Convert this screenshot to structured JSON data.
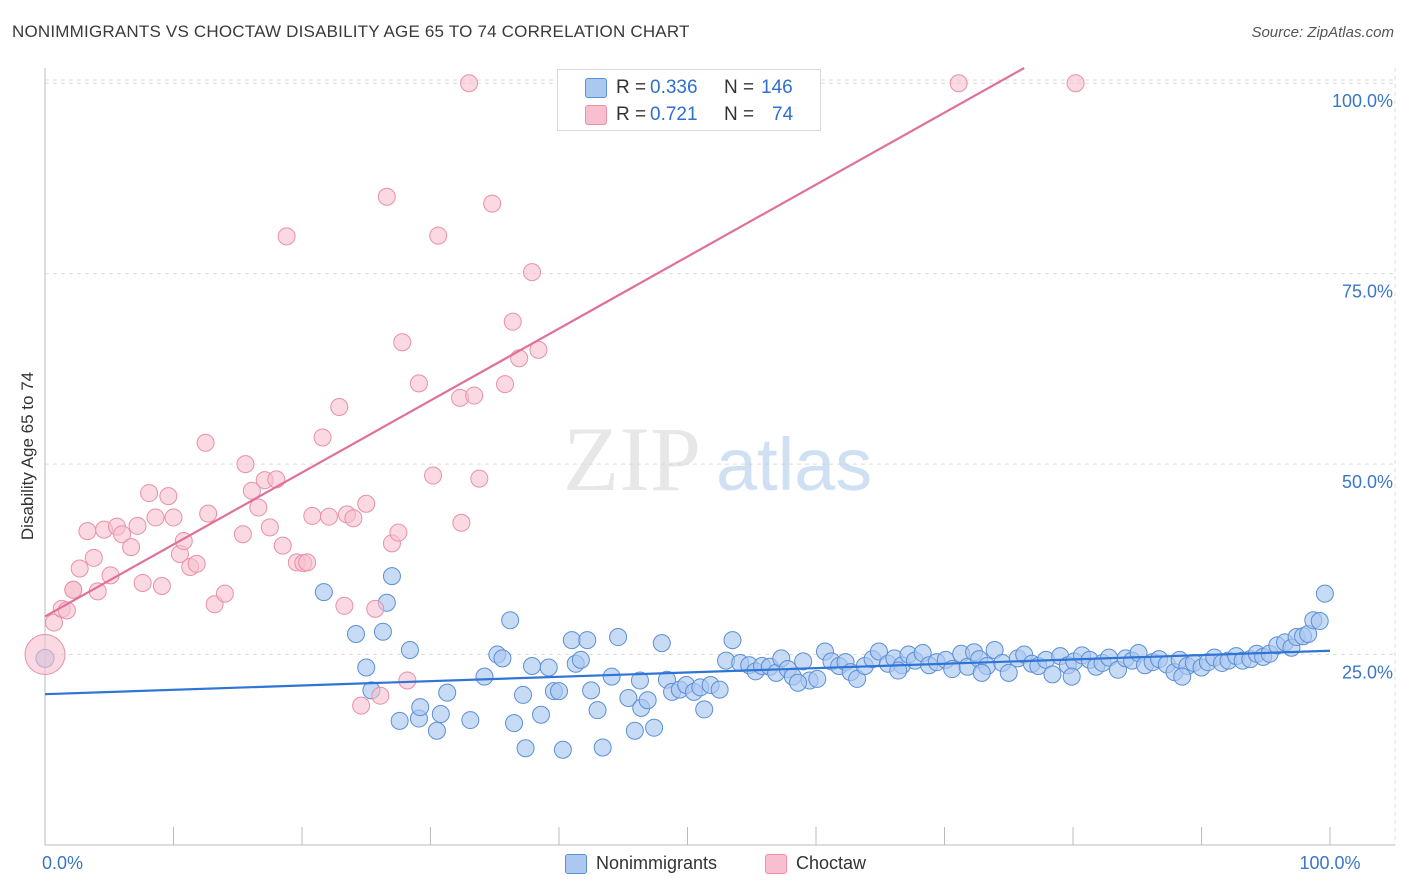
{
  "header": {
    "title": "NONIMMIGRANTS VS CHOCTAW DISABILITY AGE 65 TO 74 CORRELATION CHART",
    "source": "Source: ZipAtlas.com"
  },
  "watermark": {
    "zip": "ZIP",
    "atlas": "atlas"
  },
  "legend_top": [
    {
      "r_label": "R =",
      "r_value": "0.336",
      "n_label": "N =",
      "n_value": "146"
    },
    {
      "r_label": "R =",
      "r_value": "0.721",
      "n_label": "N =",
      "n_value": "74"
    }
  ],
  "legend_bottom": [
    {
      "label": "Nonimmigrants"
    },
    {
      "label": "Choctaw"
    }
  ],
  "colors": {
    "blue_fill": "#aac8f0",
    "blue_stroke": "#5b8fd6",
    "blue_line": "#2e75d6",
    "pink_fill": "#f7bfcf",
    "pink_stroke": "#e890a8",
    "pink_line": "#e0709a",
    "tick_label": "#3a76c8",
    "grid": "#dddddd"
  },
  "chart_data": {
    "type": "scatter",
    "title": "NONIMMIGRANTS VS CHOCTAW DISABILITY AGE 65 TO 74 CORRELATION CHART",
    "xlabel": "",
    "ylabel": "Disability Age 65 to 74",
    "xlim": [
      0,
      100
    ],
    "ylim": [
      0,
      102
    ],
    "x_tick_labels": [
      {
        "value": 0,
        "label": "0.0%"
      },
      {
        "value": 100,
        "label": "100.0%"
      }
    ],
    "y_tick_labels": [
      {
        "value": 25,
        "label": "25.0%"
      },
      {
        "value": 50,
        "label": "50.0%"
      },
      {
        "value": 75,
        "label": "75.0%"
      },
      {
        "value": 100,
        "label": "100.0%"
      }
    ],
    "grid": true,
    "legend_position": "top-center",
    "series": [
      {
        "name": "Nonimmigrants",
        "r": 0.336,
        "n": 146,
        "trend": [
          [
            0,
            19.8
          ],
          [
            100,
            25.5
          ]
        ],
        "points": [
          [
            0,
            24.5
          ],
          [
            21.7,
            33.2
          ],
          [
            24.2,
            27.7
          ],
          [
            25.0,
            23.3
          ],
          [
            25.4,
            20.3
          ],
          [
            26.3,
            28.0
          ],
          [
            26.6,
            31.8
          ],
          [
            27.0,
            35.3
          ],
          [
            28.4,
            25.6
          ],
          [
            27.6,
            16.3
          ],
          [
            29.1,
            16.6
          ],
          [
            29.2,
            18.1
          ],
          [
            30.5,
            15.0
          ],
          [
            31.3,
            20.0
          ],
          [
            33.1,
            16.4
          ],
          [
            34.2,
            22.1
          ],
          [
            35.2,
            25.0
          ],
          [
            35.6,
            24.5
          ],
          [
            36.2,
            29.5
          ],
          [
            36.5,
            16.0
          ],
          [
            37.2,
            19.7
          ],
          [
            37.4,
            12.7
          ],
          [
            37.9,
            23.5
          ],
          [
            38.6,
            17.1
          ],
          [
            39.2,
            23.3
          ],
          [
            39.6,
            20.2
          ],
          [
            40.0,
            20.2
          ],
          [
            40.3,
            12.5
          ],
          [
            41.0,
            26.9
          ],
          [
            41.3,
            23.8
          ],
          [
            41.7,
            24.3
          ],
          [
            42.2,
            26.9
          ],
          [
            43.0,
            17.7
          ],
          [
            43.4,
            12.8
          ],
          [
            44.1,
            22.1
          ],
          [
            44.6,
            27.3
          ],
          [
            45.4,
            19.3
          ],
          [
            45.9,
            15.0
          ],
          [
            46.3,
            21.6
          ],
          [
            46.4,
            18.0
          ],
          [
            46.9,
            19.0
          ],
          [
            47.4,
            15.4
          ],
          [
            48.0,
            26.5
          ],
          [
            48.4,
            21.7
          ],
          [
            48.8,
            20.1
          ],
          [
            49.4,
            20.4
          ],
          [
            49.9,
            21.0
          ],
          [
            50.5,
            20.1
          ],
          [
            51.0,
            20.7
          ],
          [
            51.3,
            17.8
          ],
          [
            51.8,
            21.0
          ],
          [
            52.5,
            20.4
          ],
          [
            53.0,
            24.2
          ],
          [
            53.5,
            26.9
          ],
          [
            54.1,
            23.9
          ],
          [
            54.8,
            23.6
          ],
          [
            55.3,
            22.8
          ],
          [
            55.8,
            23.5
          ],
          [
            56.4,
            23.4
          ],
          [
            56.9,
            22.6
          ],
          [
            57.3,
            24.5
          ],
          [
            57.8,
            23.1
          ],
          [
            58.2,
            22.1
          ],
          [
            59.0,
            24.1
          ],
          [
            59.5,
            21.6
          ],
          [
            60.1,
            21.8
          ],
          [
            60.7,
            25.4
          ],
          [
            61.2,
            24.1
          ],
          [
            61.8,
            23.5
          ],
          [
            62.3,
            24.0
          ],
          [
            62.7,
            22.7
          ],
          [
            63.2,
            21.8
          ],
          [
            63.8,
            23.5
          ],
          [
            64.4,
            24.4
          ],
          [
            64.9,
            25.4
          ],
          [
            65.6,
            23.8
          ],
          [
            66.1,
            24.5
          ],
          [
            66.7,
            23.6
          ],
          [
            67.2,
            25.0
          ],
          [
            67.7,
            24.2
          ],
          [
            68.3,
            25.2
          ],
          [
            68.8,
            23.6
          ],
          [
            69.4,
            24.0
          ],
          [
            70.1,
            24.3
          ],
          [
            70.6,
            23.1
          ],
          [
            71.3,
            25.1
          ],
          [
            71.8,
            23.4
          ],
          [
            72.3,
            25.3
          ],
          [
            72.7,
            24.4
          ],
          [
            73.3,
            23.5
          ],
          [
            73.9,
            25.6
          ],
          [
            74.5,
            23.9
          ],
          [
            75.0,
            22.6
          ],
          [
            75.7,
            24.5
          ],
          [
            76.2,
            25.0
          ],
          [
            76.8,
            23.8
          ],
          [
            77.3,
            23.5
          ],
          [
            77.9,
            24.3
          ],
          [
            78.4,
            22.4
          ],
          [
            79.0,
            24.8
          ],
          [
            79.6,
            23.6
          ],
          [
            80.1,
            24.1
          ],
          [
            80.7,
            24.9
          ],
          [
            81.3,
            24.3
          ],
          [
            81.8,
            23.4
          ],
          [
            82.3,
            23.9
          ],
          [
            82.8,
            24.6
          ],
          [
            83.5,
            23.0
          ],
          [
            84.1,
            24.5
          ],
          [
            84.6,
            24.2
          ],
          [
            85.1,
            25.2
          ],
          [
            85.6,
            23.6
          ],
          [
            86.2,
            24.0
          ],
          [
            86.7,
            24.4
          ],
          [
            87.3,
            23.7
          ],
          [
            87.9,
            22.7
          ],
          [
            88.3,
            24.3
          ],
          [
            88.9,
            23.5
          ],
          [
            89.4,
            23.9
          ],
          [
            90.0,
            23.3
          ],
          [
            90.5,
            24.0
          ],
          [
            91.0,
            24.6
          ],
          [
            91.6,
            23.9
          ],
          [
            92.1,
            24.2
          ],
          [
            92.7,
            24.8
          ],
          [
            93.2,
            24.2
          ],
          [
            93.8,
            24.4
          ],
          [
            94.3,
            25.1
          ],
          [
            94.8,
            24.7
          ],
          [
            95.3,
            25.1
          ],
          [
            95.9,
            26.2
          ],
          [
            96.5,
            26.6
          ],
          [
            97.0,
            25.9
          ],
          [
            97.4,
            27.3
          ],
          [
            97.9,
            27.4
          ],
          [
            98.3,
            27.7
          ],
          [
            98.7,
            29.5
          ],
          [
            99.2,
            29.4
          ],
          [
            99.6,
            33.0
          ],
          [
            79.9,
            22.1
          ],
          [
            72.9,
            22.6
          ],
          [
            58.6,
            21.3
          ],
          [
            42.5,
            20.3
          ],
          [
            30.8,
            17.2
          ],
          [
            88.5,
            22.1
          ],
          [
            66.4,
            22.9
          ]
        ]
      },
      {
        "name": "Choctaw",
        "r": 0.721,
        "n": 74,
        "trend": [
          [
            0,
            30.0
          ],
          [
            76.2,
            102.0
          ]
        ],
        "points": [
          [
            0,
            25.0
          ],
          [
            0.7,
            29.2
          ],
          [
            1.3,
            31.0
          ],
          [
            1.7,
            30.8
          ],
          [
            2.2,
            33.5
          ],
          [
            2.7,
            36.3
          ],
          [
            3.3,
            41.2
          ],
          [
            3.8,
            37.7
          ],
          [
            4.1,
            33.3
          ],
          [
            4.6,
            41.4
          ],
          [
            5.1,
            35.4
          ],
          [
            5.6,
            41.8
          ],
          [
            6.0,
            40.8
          ],
          [
            6.7,
            39.1
          ],
          [
            7.2,
            41.9
          ],
          [
            7.6,
            34.4
          ],
          [
            8.1,
            46.2
          ],
          [
            8.6,
            43.0
          ],
          [
            9.1,
            34.0
          ],
          [
            9.6,
            45.8
          ],
          [
            10.0,
            43.0
          ],
          [
            10.5,
            38.2
          ],
          [
            10.8,
            39.9
          ],
          [
            11.3,
            36.5
          ],
          [
            11.8,
            36.9
          ],
          [
            12.5,
            52.8
          ],
          [
            12.7,
            43.5
          ],
          [
            13.2,
            31.6
          ],
          [
            14.0,
            33.0
          ],
          [
            15.4,
            40.8
          ],
          [
            15.6,
            50.0
          ],
          [
            16.1,
            46.5
          ],
          [
            16.6,
            44.3
          ],
          [
            17.1,
            47.9
          ],
          [
            17.5,
            41.7
          ],
          [
            18.0,
            48.0
          ],
          [
            18.5,
            39.3
          ],
          [
            18.8,
            79.9
          ],
          [
            19.6,
            37.1
          ],
          [
            20.1,
            37.0
          ],
          [
            20.4,
            37.1
          ],
          [
            20.8,
            43.2
          ],
          [
            21.6,
            53.5
          ],
          [
            22.1,
            43.1
          ],
          [
            22.9,
            57.5
          ],
          [
            23.3,
            31.4
          ],
          [
            23.5,
            43.4
          ],
          [
            24.0,
            42.9
          ],
          [
            24.6,
            18.3
          ],
          [
            25.0,
            44.8
          ],
          [
            25.7,
            31.0
          ],
          [
            26.1,
            19.6
          ],
          [
            26.6,
            85.1
          ],
          [
            27.0,
            39.6
          ],
          [
            27.5,
            41.0
          ],
          [
            27.8,
            66.0
          ],
          [
            28.2,
            21.6
          ],
          [
            29.1,
            60.6
          ],
          [
            30.2,
            48.5
          ],
          [
            30.6,
            80.0
          ],
          [
            32.3,
            58.7
          ],
          [
            32.4,
            42.3
          ],
          [
            33.0,
            100.0
          ],
          [
            33.4,
            59.0
          ],
          [
            33.8,
            48.1
          ],
          [
            34.8,
            84.2
          ],
          [
            35.8,
            60.5
          ],
          [
            36.4,
            68.7
          ],
          [
            36.9,
            63.9
          ],
          [
            37.9,
            75.2
          ],
          [
            38.4,
            65.0
          ],
          [
            71.1,
            100.0
          ],
          [
            80.2,
            100.0
          ],
          [
            2.2,
            33.5
          ]
        ]
      }
    ]
  }
}
